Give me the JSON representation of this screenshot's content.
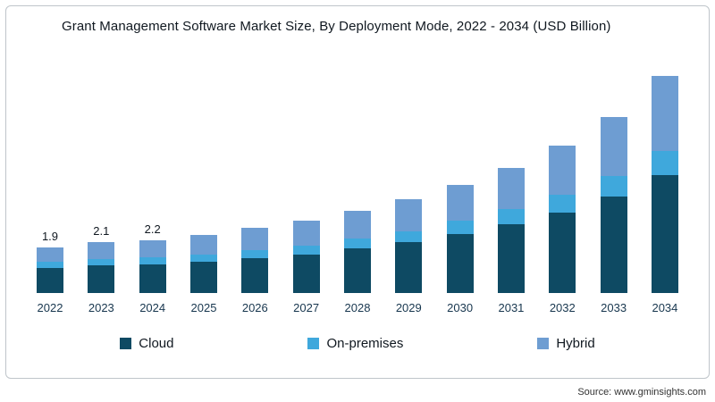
{
  "chart_data": {
    "type": "bar",
    "stacked": true,
    "title": "Grant Management Software Market Size, By Deployment Mode, 2022 - 2034 (USD Billion)",
    "categories": [
      "2022",
      "2023",
      "2024",
      "2025",
      "2026",
      "2027",
      "2028",
      "2029",
      "2030",
      "2031",
      "2032",
      "2033",
      "2034"
    ],
    "series": [
      {
        "name": "Cloud",
        "color": "#0e4a63",
        "values": [
          1.05,
          1.15,
          1.2,
          1.3,
          1.45,
          1.6,
          1.85,
          2.1,
          2.45,
          2.85,
          3.35,
          4.0,
          4.9
        ]
      },
      {
        "name": "On-premises",
        "color": "#3fa8dc",
        "values": [
          0.25,
          0.27,
          0.28,
          0.3,
          0.33,
          0.37,
          0.41,
          0.47,
          0.54,
          0.62,
          0.73,
          0.85,
          1.0
        ]
      },
      {
        "name": "Hybrid",
        "color": "#6e9dd2",
        "values": [
          0.6,
          0.68,
          0.72,
          0.8,
          0.92,
          1.03,
          1.14,
          1.33,
          1.51,
          1.73,
          2.02,
          2.45,
          3.1
        ]
      }
    ],
    "data_labels": [
      "1.9",
      "2.1",
      "2.2",
      "",
      "",
      "",
      "",
      "",
      "",
      "",
      "",
      "",
      ""
    ],
    "totals": [
      1.9,
      2.1,
      2.2,
      2.4,
      2.7,
      3.0,
      3.4,
      3.9,
      4.5,
      5.2,
      6.1,
      7.3,
      9.0
    ],
    "ylim": [
      0,
      9.5
    ],
    "grid": false,
    "legend_position": "bottom",
    "xlabel": "",
    "ylabel": ""
  },
  "source": "Source: www.gminsights.com"
}
